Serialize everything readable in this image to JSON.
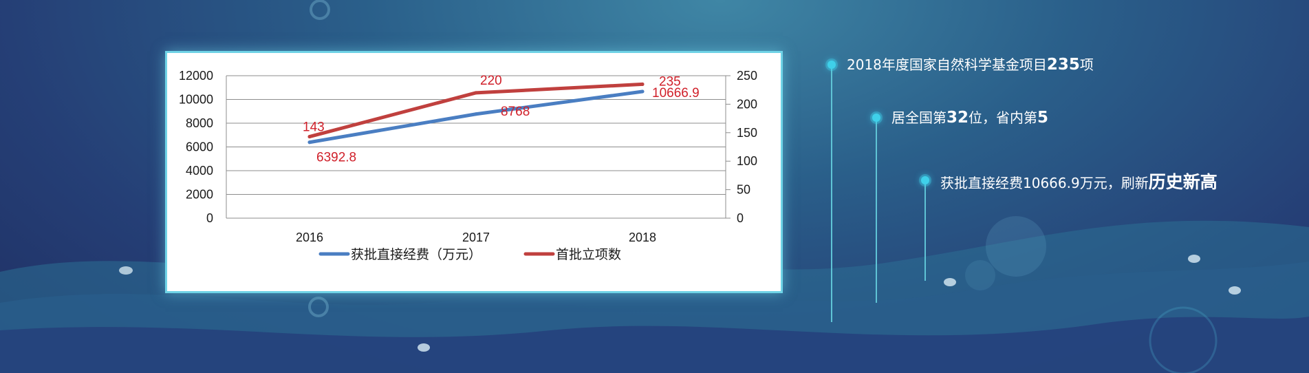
{
  "chart_data": {
    "type": "line",
    "categories": [
      "2016",
      "2017",
      "2018"
    ],
    "series": [
      {
        "name": "获批直接经费（万元）",
        "axis": "left",
        "color": "#4a7ec2",
        "values": [
          6392.8,
          8768,
          10666.9
        ],
        "labels": [
          "6392.8",
          "8768",
          "10666.9"
        ]
      },
      {
        "name": "首批立项数",
        "axis": "right",
        "color": "#c0403e",
        "values": [
          143,
          220,
          235
        ],
        "labels": [
          "143",
          "220",
          "235"
        ]
      }
    ],
    "y_left": {
      "min": 0,
      "max": 12000,
      "ticks": [
        "0",
        "2000",
        "4000",
        "6000",
        "8000",
        "10000",
        "12000"
      ]
    },
    "y_right": {
      "min": 0,
      "max": 250,
      "ticks": [
        "0",
        "50",
        "100",
        "150",
        "200",
        "250"
      ]
    },
    "grid": true,
    "legend": "bottom"
  },
  "bullets": [
    {
      "prefix": "2018年度国家自然科学基金项目",
      "highlight": "235",
      "suffix": "项"
    },
    {
      "prefix": "居全国第",
      "highlight": "32",
      "middle": "位，省内第",
      "highlight2": "5"
    },
    {
      "prefix": "获批直接经费10666.9万元，刷新",
      "highlight": "历史新高"
    }
  ],
  "colors": {
    "accent": "#3fd0ea",
    "label_red": "#d0202a"
  }
}
